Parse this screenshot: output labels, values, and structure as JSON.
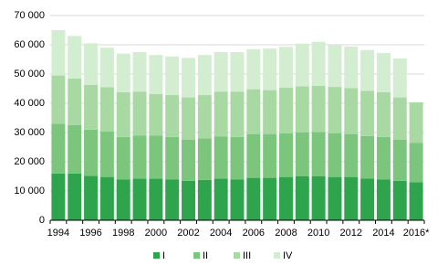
{
  "chart_data": {
    "type": "stacked-bar",
    "categories": [
      "1994",
      null,
      "1996",
      null,
      "1998",
      null,
      "2000",
      null,
      "2002",
      null,
      "2004",
      null,
      "2006",
      null,
      "2008",
      null,
      "2010",
      null,
      "2012",
      null,
      "2014",
      null,
      "2016*"
    ],
    "series": [
      {
        "name": "I",
        "color": "#2ea44c",
        "values": [
          16000,
          16000,
          15200,
          14800,
          14000,
          14200,
          14200,
          14000,
          13500,
          13800,
          14200,
          14000,
          14500,
          14500,
          14800,
          15000,
          15000,
          14800,
          14800,
          14300,
          14000,
          13500,
          13000
        ]
      },
      {
        "name": "II",
        "color": "#7cc57c",
        "values": [
          17000,
          16500,
          15800,
          15500,
          14500,
          14800,
          14800,
          14500,
          14000,
          14200,
          14500,
          14500,
          15000,
          15000,
          15000,
          15000,
          15200,
          15000,
          14700,
          14500,
          14500,
          14000,
          13500
        ]
      },
      {
        "name": "III",
        "color": "#a9d9a3",
        "values": [
          16500,
          16000,
          15300,
          15200,
          15300,
          15000,
          14200,
          14300,
          14500,
          14800,
          15300,
          15500,
          15300,
          15000,
          15500,
          15800,
          15800,
          15800,
          15700,
          15500,
          15300,
          14500,
          13800
        ]
      },
      {
        "name": "IV",
        "color": "#d3edd0",
        "values": [
          15500,
          14500,
          14200,
          13500,
          13200,
          13500,
          13300,
          13200,
          13500,
          13700,
          13500,
          13500,
          13700,
          14200,
          14000,
          14600,
          15000,
          14200,
          14200,
          13900,
          13400,
          13300,
          null
        ]
      }
    ],
    "ylim": [
      0,
      70000
    ],
    "yticks": [
      0,
      {
        "value": 10000,
        "label": "10 000"
      },
      {
        "value": 20000,
        "label": "20 000"
      },
      {
        "value": 30000,
        "label": "30 000"
      },
      {
        "value": 40000,
        "label": "40 000"
      },
      {
        "value": 50000,
        "label": "50 000"
      },
      {
        "value": 60000,
        "label": "60 000"
      },
      {
        "value": 70000,
        "label": "70 000"
      }
    ],
    "grid": true
  }
}
